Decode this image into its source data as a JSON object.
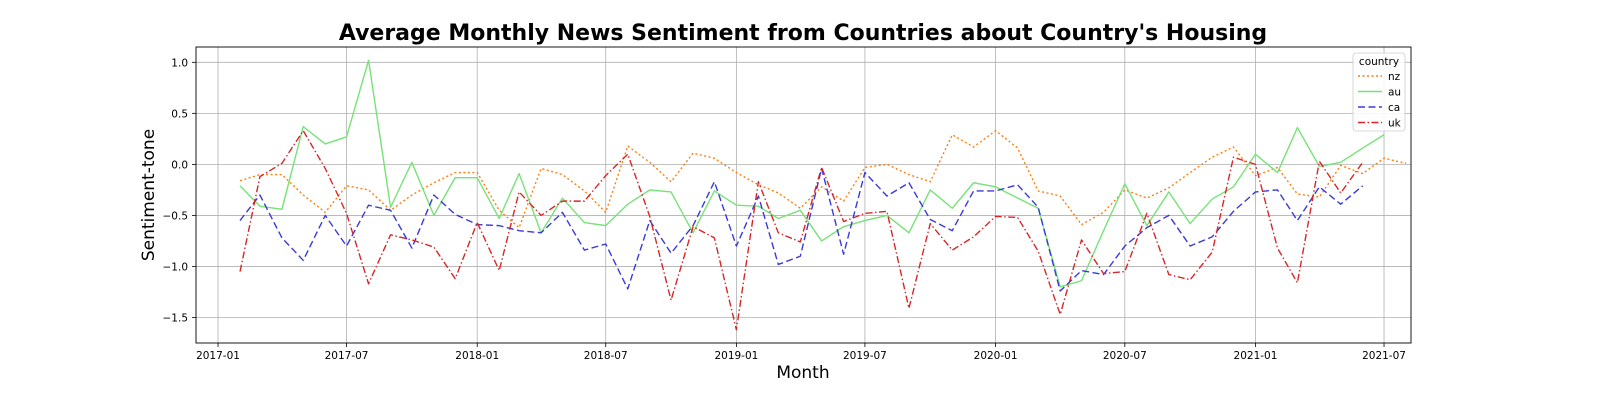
{
  "chart_data": {
    "type": "line",
    "title": "Average Monthly News Sentiment from Countries about Country's Housing",
    "xlabel": "Month",
    "ylabel": "Sentiment-tone",
    "x_range": [
      "2016-12-01",
      "2021-08-08"
    ],
    "ylim": [
      -1.75,
      1.15
    ],
    "x_ticks": [
      "2017-01",
      "2017-07",
      "2018-01",
      "2018-07",
      "2019-01",
      "2019-07",
      "2020-01",
      "2020-07",
      "2021-01",
      "2021-07"
    ],
    "y_ticks": [
      1.0,
      0.5,
      0.0,
      -0.5,
      -1.0,
      -1.5
    ],
    "y_tick_labels": [
      "1.0",
      "0.5",
      "0.0",
      "−0.5",
      "−1.0",
      "−1.5"
    ],
    "grid": true,
    "legend": {
      "title": "country",
      "position": "top-right"
    },
    "start_month": "2017-02",
    "series": [
      {
        "name": "nz",
        "color": "#ff7f0e",
        "dash": "2,2.5",
        "values": [
          -0.16,
          -0.1,
          -0.1,
          -0.3,
          -0.47,
          -0.21,
          -0.25,
          -0.45,
          -0.3,
          -0.18,
          -0.08,
          -0.08,
          -0.45,
          -0.62,
          -0.04,
          -0.1,
          -0.26,
          -0.47,
          0.18,
          0.02,
          -0.17,
          0.11,
          0.06,
          -0.08,
          -0.2,
          -0.28,
          -0.43,
          -0.22,
          -0.36,
          -0.03,
          0.0,
          -0.1,
          -0.17,
          0.29,
          0.17,
          0.33,
          0.16,
          -0.26,
          -0.31,
          -0.59,
          -0.47,
          -0.25,
          -0.33,
          -0.23,
          -0.08,
          0.07,
          0.17,
          -0.11,
          -0.03,
          -0.29,
          -0.32,
          -0.01,
          -0.09,
          0.06,
          0.01
        ]
      },
      {
        "name": "au",
        "color": "#77e277",
        "dash": "",
        "values": [
          -0.21,
          -0.41,
          -0.44,
          0.37,
          0.2,
          0.27,
          1.02,
          -0.42,
          0.02,
          -0.5,
          -0.13,
          -0.13,
          -0.53,
          -0.09,
          -0.67,
          -0.33,
          -0.57,
          -0.6,
          -0.39,
          -0.25,
          -0.27,
          -0.67,
          -0.26,
          -0.4,
          -0.41,
          -0.53,
          -0.45,
          -0.75,
          -0.61,
          -0.55,
          -0.5,
          -0.67,
          -0.25,
          -0.43,
          -0.18,
          -0.22,
          -0.33,
          -0.43,
          -1.2,
          -1.14,
          -0.65,
          -0.19,
          -0.6,
          -0.27,
          -0.58,
          -0.34,
          -0.22,
          0.1,
          -0.08,
          0.36,
          -0.02,
          0.02,
          0.16,
          0.29
        ]
      },
      {
        "name": "ca",
        "color": "#3a3ad8",
        "dash": "7,3.5",
        "values": [
          -0.55,
          -0.3,
          -0.72,
          -0.94,
          -0.5,
          -0.8,
          -0.4,
          -0.45,
          -0.82,
          -0.3,
          -0.49,
          -0.59,
          -0.6,
          -0.65,
          -0.67,
          -0.47,
          -0.84,
          -0.78,
          -1.22,
          -0.55,
          -0.87,
          -0.6,
          -0.17,
          -0.8,
          -0.31,
          -0.98,
          -0.9,
          -0.04,
          -0.88,
          -0.08,
          -0.31,
          -0.18,
          -0.54,
          -0.65,
          -0.26,
          -0.26,
          -0.2,
          -0.42,
          -1.24,
          -1.04,
          -1.08,
          -0.8,
          -0.62,
          -0.5,
          -0.8,
          -0.71,
          -0.46,
          -0.27,
          -0.25,
          -0.55,
          -0.22,
          -0.39,
          -0.21
        ]
      },
      {
        "name": "uk",
        "color": "#d62728",
        "dash": "7,2.5,1.5,2.5",
        "values": [
          -1.05,
          -0.12,
          0.01,
          0.33,
          -0.04,
          -0.48,
          -1.17,
          -0.69,
          -0.74,
          -0.81,
          -1.12,
          -0.57,
          -1.04,
          -0.27,
          -0.5,
          -0.36,
          -0.36,
          -0.11,
          0.1,
          -0.51,
          -1.33,
          -0.61,
          -0.72,
          -1.62,
          -0.17,
          -0.67,
          -0.76,
          -0.03,
          -0.56,
          -0.48,
          -0.46,
          -1.41,
          -0.58,
          -0.84,
          -0.71,
          -0.51,
          -0.52,
          -0.85,
          -1.47,
          -0.74,
          -1.07,
          -1.05,
          -0.48,
          -1.08,
          -1.13,
          -0.86,
          0.07,
          0.0,
          -0.82,
          -1.16,
          0.03,
          -0.28,
          0.02
        ]
      }
    ]
  }
}
